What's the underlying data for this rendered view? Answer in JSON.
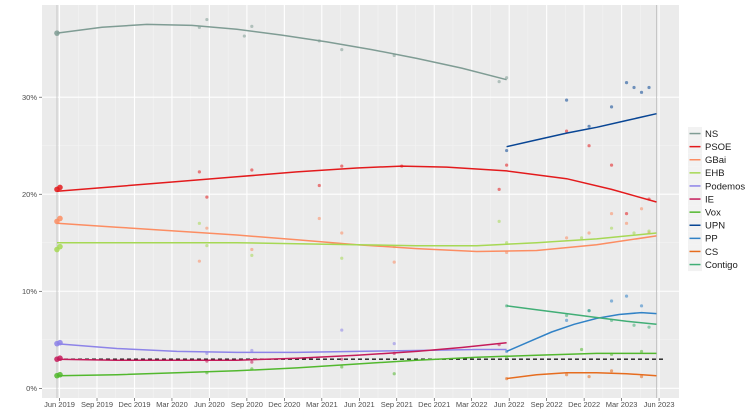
{
  "chart_data": {
    "type": "line",
    "title": "",
    "xlabel": "",
    "ylabel": "",
    "xlim": [
      2019.3,
      2023.55
    ],
    "ylim": [
      -0.01,
      0.395
    ],
    "grid": true,
    "legend_position": "right",
    "y_ticks": [
      {
        "value": 0.0,
        "label": "0%"
      },
      {
        "value": 0.1,
        "label": "10%"
      },
      {
        "value": 0.2,
        "label": "20%"
      },
      {
        "value": 0.3,
        "label": "30%"
      }
    ],
    "x_ticks": [
      {
        "value": 2019.417,
        "label": "Jun 2019"
      },
      {
        "value": 2019.667,
        "label": "Sep 2019"
      },
      {
        "value": 2019.917,
        "label": "Dec 2019"
      },
      {
        "value": 2020.167,
        "label": "Mar 2020"
      },
      {
        "value": 2020.417,
        "label": "Jun 2020"
      },
      {
        "value": 2020.667,
        "label": "Sep 2020"
      },
      {
        "value": 2020.917,
        "label": "Dec 2020"
      },
      {
        "value": 2021.167,
        "label": "Mar 2021"
      },
      {
        "value": 2021.417,
        "label": "Jun 2021"
      },
      {
        "value": 2021.667,
        "label": "Sep 2021"
      },
      {
        "value": 2021.917,
        "label": "Dec 2021"
      },
      {
        "value": 2022.167,
        "label": "Mar 2022"
      },
      {
        "value": 2022.417,
        "label": "Jun 2022"
      },
      {
        "value": 2022.667,
        "label": "Sep 2022"
      },
      {
        "value": 2022.917,
        "label": "Dec 2022"
      },
      {
        "value": 2023.167,
        "label": "Mar 2023"
      },
      {
        "value": 2023.417,
        "label": "Jun 2023"
      }
    ],
    "election_lines": [
      2019.4,
      2023.4
    ],
    "threshold": 0.03,
    "series": [
      {
        "name": "NS",
        "color": "#7f9c94",
        "line": {
          "x": [
            2019.4,
            2019.7,
            2020.0,
            2020.3,
            2020.6,
            2020.9,
            2021.2,
            2021.5,
            2021.8,
            2022.1,
            2022.4
          ],
          "y": [
            0.366,
            0.372,
            0.375,
            0.374,
            0.37,
            0.364,
            0.357,
            0.349,
            0.34,
            0.33,
            0.318
          ]
        },
        "points": {
          "x": [
            2019.4,
            2020.35,
            2020.4,
            2020.65,
            2020.7,
            2021.15,
            2021.3,
            2021.65,
            2022.35,
            2022.4
          ],
          "y": [
            0.366,
            0.372,
            0.38,
            0.363,
            0.373,
            0.358,
            0.349,
            0.343,
            0.316,
            0.32
          ]
        }
      },
      {
        "name": "PSOE",
        "color": "#e31a1c",
        "line": {
          "x": [
            2019.4,
            2019.8,
            2020.2,
            2020.6,
            2021.0,
            2021.4,
            2021.7,
            2022.0,
            2022.4,
            2022.8,
            2023.1,
            2023.4
          ],
          "y": [
            0.203,
            0.208,
            0.213,
            0.218,
            0.223,
            0.227,
            0.229,
            0.228,
            0.224,
            0.216,
            0.205,
            0.192
          ]
        },
        "points": {
          "x": [
            2019.4,
            2019.42,
            2020.35,
            2020.4,
            2020.7,
            2021.15,
            2021.3,
            2021.7,
            2022.35,
            2022.4,
            2022.8,
            2022.95,
            2023.1,
            2023.2,
            2023.35
          ],
          "y": [
            0.205,
            0.207,
            0.223,
            0.197,
            0.225,
            0.209,
            0.229,
            0.229,
            0.205,
            0.23,
            0.265,
            0.25,
            0.23,
            0.18,
            0.195
          ]
        }
      },
      {
        "name": "GBai",
        "color": "#fc8d62",
        "line": {
          "x": [
            2019.4,
            2019.8,
            2020.2,
            2020.6,
            2021.0,
            2021.4,
            2021.8,
            2022.2,
            2022.6,
            2023.0,
            2023.4
          ],
          "y": [
            0.17,
            0.166,
            0.162,
            0.158,
            0.153,
            0.148,
            0.144,
            0.141,
            0.142,
            0.148,
            0.157
          ]
        },
        "points": {
          "x": [
            2019.4,
            2019.42,
            2020.35,
            2020.4,
            2020.7,
            2021.15,
            2021.3,
            2021.65,
            2022.4,
            2022.8,
            2022.95,
            2023.1,
            2023.2,
            2023.3,
            2023.35
          ],
          "y": [
            0.172,
            0.175,
            0.131,
            0.165,
            0.143,
            0.175,
            0.16,
            0.13,
            0.14,
            0.155,
            0.16,
            0.18,
            0.17,
            0.185,
            0.16
          ]
        }
      },
      {
        "name": "EHB",
        "color": "#a6d854",
        "line": {
          "x": [
            2019.4,
            2019.8,
            2020.2,
            2020.6,
            2021.0,
            2021.4,
            2021.8,
            2022.2,
            2022.6,
            2023.0,
            2023.4
          ],
          "y": [
            0.15,
            0.15,
            0.15,
            0.15,
            0.149,
            0.148,
            0.147,
            0.147,
            0.15,
            0.154,
            0.16
          ]
        },
        "points": {
          "x": [
            2019.4,
            2019.42,
            2020.35,
            2020.4,
            2020.7,
            2021.3,
            2021.65,
            2022.35,
            2022.4,
            2022.9,
            2023.1,
            2023.25,
            2023.35
          ],
          "y": [
            0.143,
            0.146,
            0.17,
            0.147,
            0.137,
            0.134,
            0.146,
            0.172,
            0.15,
            0.155,
            0.165,
            0.16,
            0.162
          ]
        }
      },
      {
        "name": "Podemos",
        "color": "#8d83e8",
        "line": {
          "x": [
            2019.4,
            2019.8,
            2020.2,
            2020.6,
            2021.0,
            2021.4,
            2021.8,
            2022.2,
            2022.4
          ],
          "y": [
            0.046,
            0.041,
            0.038,
            0.037,
            0.037,
            0.038,
            0.039,
            0.04,
            0.04
          ]
        },
        "points": {
          "x": [
            2019.4,
            2019.42,
            2020.4,
            2020.7,
            2021.3,
            2021.65
          ],
          "y": [
            0.046,
            0.047,
            0.036,
            0.039,
            0.06,
            0.046
          ]
        }
      },
      {
        "name": "IE",
        "color": "#c51b5a",
        "line": {
          "x": [
            2019.4,
            2019.8,
            2020.2,
            2020.6,
            2021.0,
            2021.4,
            2021.8,
            2022.1,
            2022.4
          ],
          "y": [
            0.03,
            0.029,
            0.029,
            0.029,
            0.031,
            0.034,
            0.038,
            0.042,
            0.047
          ]
        },
        "points": {
          "x": [
            2019.4,
            2019.42,
            2020.4,
            2020.7,
            2021.3,
            2021.65,
            2022.35
          ],
          "y": [
            0.03,
            0.031,
            0.028,
            0.027,
            0.03,
            0.036,
            0.045
          ]
        }
      },
      {
        "name": "Vox",
        "color": "#52b82e",
        "line": {
          "x": [
            2019.4,
            2019.8,
            2020.2,
            2020.6,
            2021.0,
            2021.4,
            2021.8,
            2022.2,
            2022.6,
            2023.0,
            2023.4
          ],
          "y": [
            0.013,
            0.014,
            0.016,
            0.018,
            0.021,
            0.025,
            0.029,
            0.032,
            0.034,
            0.036,
            0.036
          ]
        },
        "points": {
          "x": [
            2019.4,
            2019.42,
            2020.4,
            2020.7,
            2021.3,
            2021.65,
            2022.4,
            2022.9,
            2023.1,
            2023.3
          ],
          "y": [
            0.013,
            0.014,
            0.016,
            0.02,
            0.022,
            0.015,
            0.032,
            0.04,
            0.035,
            0.038
          ]
        }
      },
      {
        "name": "UPN",
        "color": "#084594",
        "line": {
          "x": [
            2022.4,
            2022.6,
            2022.8,
            2023.0,
            2023.2,
            2023.4
          ],
          "y": [
            0.249,
            0.256,
            0.263,
            0.269,
            0.276,
            0.283
          ]
        },
        "points": {
          "x": [
            2022.4,
            2022.8,
            2022.95,
            2023.1,
            2023.2,
            2023.25,
            2023.3,
            2023.35
          ],
          "y": [
            0.245,
            0.297,
            0.27,
            0.29,
            0.315,
            0.31,
            0.305,
            0.31
          ]
        }
      },
      {
        "name": "PP",
        "color": "#3182c6",
        "line": {
          "x": [
            2022.4,
            2022.55,
            2022.7,
            2022.85,
            2023.0,
            2023.15,
            2023.3,
            2023.4
          ],
          "y": [
            0.038,
            0.048,
            0.058,
            0.066,
            0.072,
            0.076,
            0.078,
            0.077
          ]
        },
        "points": {
          "x": [
            2022.4,
            2022.8,
            2022.95,
            2023.1,
            2023.2,
            2023.3
          ],
          "y": [
            0.038,
            0.07,
            0.08,
            0.09,
            0.095,
            0.085
          ]
        }
      },
      {
        "name": "CS",
        "color": "#e66c1e",
        "line": {
          "x": [
            2022.4,
            2022.6,
            2022.8,
            2023.0,
            2023.2,
            2023.4
          ],
          "y": [
            0.01,
            0.014,
            0.016,
            0.016,
            0.015,
            0.013
          ]
        },
        "points": {
          "x": [
            2022.4,
            2022.8,
            2022.95,
            2023.1,
            2023.3
          ],
          "y": [
            0.01,
            0.014,
            0.012,
            0.018,
            0.012
          ]
        }
      },
      {
        "name": "Contigo",
        "color": "#41ae76",
        "line": {
          "x": [
            2022.4,
            2022.6,
            2022.8,
            2023.0,
            2023.2,
            2023.4
          ],
          "y": [
            0.085,
            0.081,
            0.077,
            0.073,
            0.069,
            0.066
          ]
        },
        "points": {
          "x": [
            2022.4,
            2022.8,
            2022.95,
            2023.1,
            2023.25,
            2023.35
          ],
          "y": [
            0.085,
            0.075,
            0.08,
            0.07,
            0.065,
            0.063
          ]
        }
      }
    ]
  }
}
